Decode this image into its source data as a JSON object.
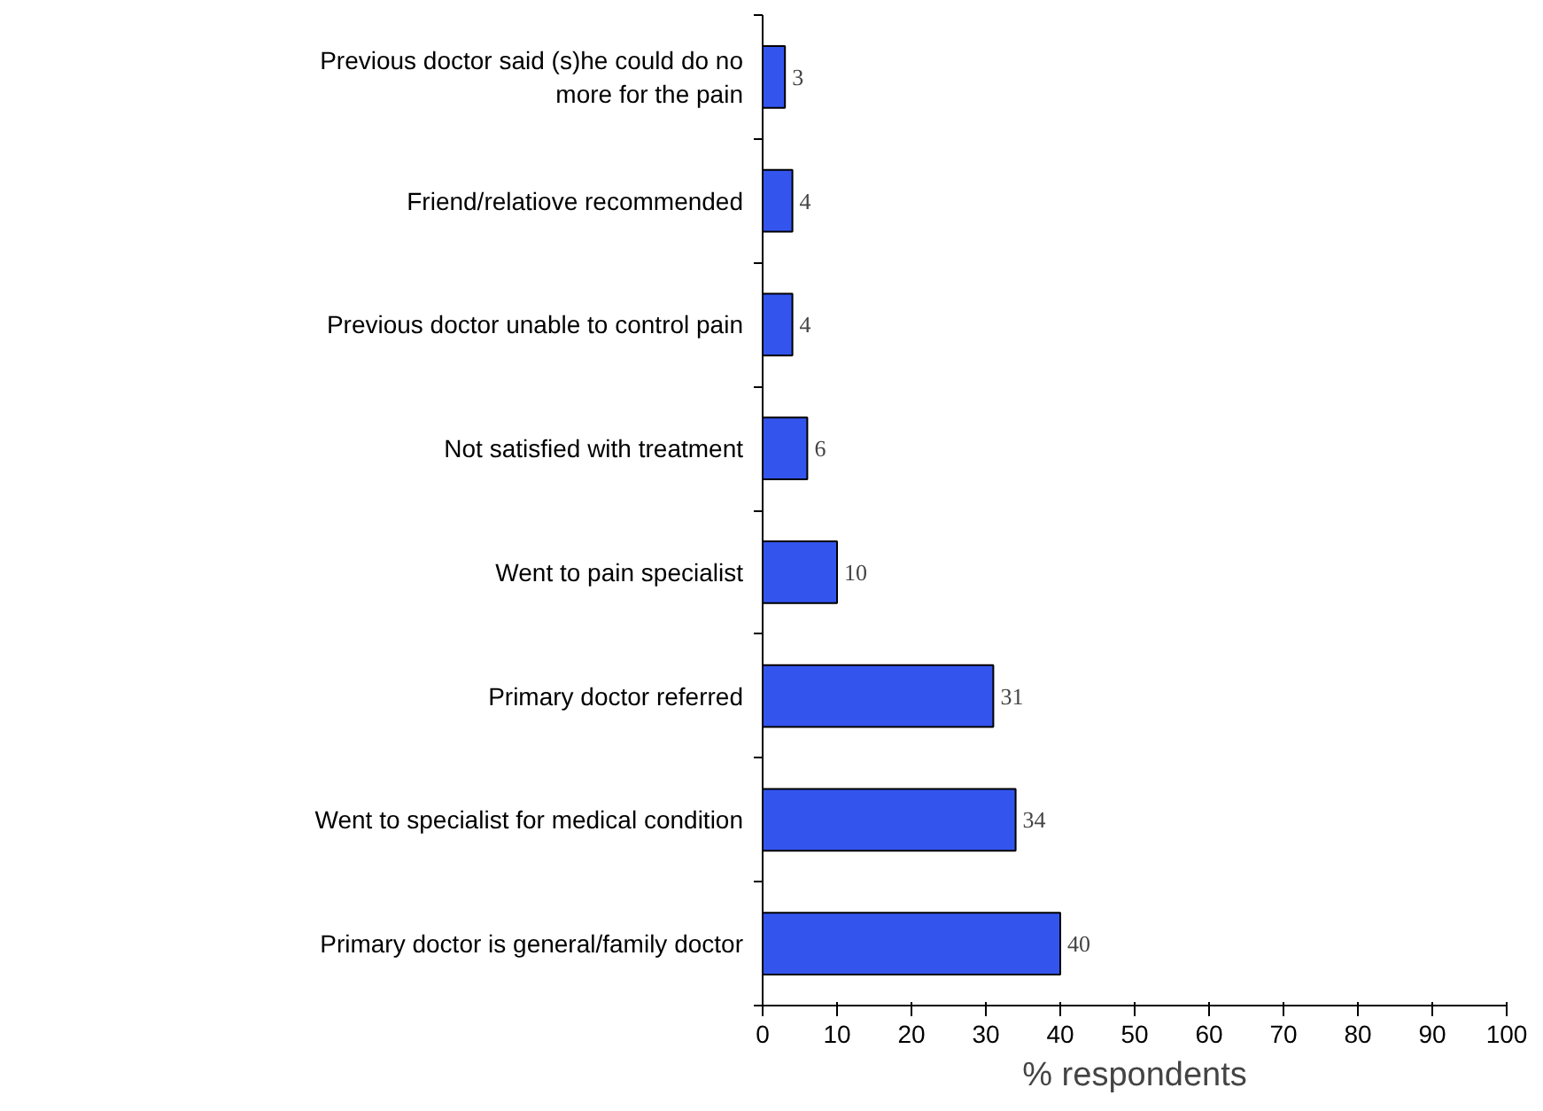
{
  "chart_data": {
    "type": "bar",
    "orientation": "horizontal",
    "xlabel": "% respondents",
    "categories": [
      "Previous doctor said (s)he could do no more for the pain",
      "Friend/relatiove recommended",
      "Previous doctor unable to control pain",
      "Not satisfied with treatment",
      "Went to pain specialist",
      "Primary doctor referred",
      "Went to specialist for medical condition",
      "Primary doctor is general/family doctor"
    ],
    "values": [
      3,
      4,
      4,
      6,
      10,
      31,
      34,
      40
    ],
    "color": "#3355ee",
    "xlim": [
      0,
      100
    ],
    "xticks": [
      0,
      10,
      20,
      30,
      40,
      50,
      60,
      70,
      80,
      90,
      100
    ],
    "data_labels": true,
    "grid": false
  }
}
